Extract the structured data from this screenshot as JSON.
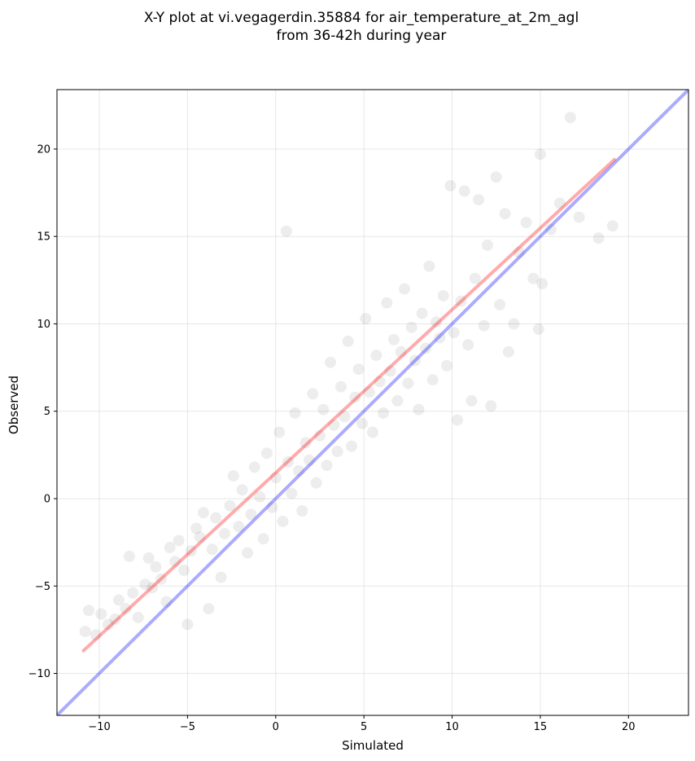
{
  "chart_data": {
    "type": "scatter",
    "title": "X-Y plot at vi.vegagerdin.35884 for air_temperature_at_2m_agl",
    "subtitle": "from 36-42h during year",
    "xlabel": "Simulated",
    "ylabel": "Observed",
    "xlim": [
      -12.4,
      23.4
    ],
    "ylim": [
      -12.4,
      23.4
    ],
    "x_ticks": [
      -10,
      -5,
      0,
      5,
      10,
      15,
      20
    ],
    "y_ticks": [
      -10,
      -5,
      0,
      5,
      10,
      15,
      20
    ],
    "x_tick_labels": [
      "−10",
      "−5",
      "0",
      "5",
      "10",
      "15",
      "20"
    ],
    "y_tick_labels": [
      "−10",
      "−5",
      "0",
      "5",
      "10",
      "15",
      "20"
    ],
    "grid": true,
    "point_color": "#000000",
    "identity_line": {
      "color": "#0000ff",
      "from": [
        -12.4,
        -12.4
      ],
      "to": [
        23.4,
        23.4
      ]
    },
    "fit_line": {
      "color": "#ff0000",
      "from": [
        -10.9,
        -8.7
      ],
      "to": [
        19.2,
        19.4
      ]
    },
    "series": [
      {
        "points": [
          [
            -10.8,
            -7.6
          ],
          [
            -10.6,
            -6.4
          ],
          [
            -10.2,
            -7.8
          ],
          [
            -9.9,
            -6.6
          ],
          [
            -9.5,
            -7.2
          ],
          [
            -9.1,
            -6.9
          ],
          [
            -8.9,
            -5.8
          ],
          [
            -8.5,
            -6.3
          ],
          [
            -8.3,
            -3.3
          ],
          [
            -8.1,
            -5.4
          ],
          [
            -7.8,
            -6.8
          ],
          [
            -7.4,
            -4.9
          ],
          [
            -7.2,
            -3.4
          ],
          [
            -7.0,
            -5.1
          ],
          [
            -6.8,
            -3.9
          ],
          [
            -6.5,
            -4.6
          ],
          [
            -6.2,
            -5.9
          ],
          [
            -6.0,
            -2.8
          ],
          [
            -5.7,
            -3.6
          ],
          [
            -5.5,
            -2.4
          ],
          [
            -5.2,
            -4.1
          ],
          [
            -5.0,
            -7.2
          ],
          [
            -4.8,
            -3.0
          ],
          [
            -4.5,
            -1.7
          ],
          [
            -4.3,
            -2.2
          ],
          [
            -4.1,
            -0.8
          ],
          [
            -3.8,
            -6.3
          ],
          [
            -3.6,
            -2.9
          ],
          [
            -3.4,
            -1.1
          ],
          [
            -3.1,
            -4.5
          ],
          [
            -2.9,
            -2.0
          ],
          [
            -2.6,
            -0.4
          ],
          [
            -2.4,
            1.3
          ],
          [
            -2.1,
            -1.6
          ],
          [
            -1.9,
            0.5
          ],
          [
            -1.6,
            -3.1
          ],
          [
            -1.4,
            -0.9
          ],
          [
            -1.2,
            1.8
          ],
          [
            -0.9,
            0.1
          ],
          [
            -0.7,
            -2.3
          ],
          [
            -0.5,
            2.6
          ],
          [
            -0.2,
            -0.5
          ],
          [
            0.0,
            1.2
          ],
          [
            0.2,
            3.8
          ],
          [
            0.4,
            -1.3
          ],
          [
            0.6,
            15.3
          ],
          [
            0.7,
            2.1
          ],
          [
            0.9,
            0.3
          ],
          [
            1.1,
            4.9
          ],
          [
            1.3,
            1.6
          ],
          [
            1.5,
            -0.7
          ],
          [
            1.7,
            3.2
          ],
          [
            1.9,
            2.2
          ],
          [
            2.1,
            6.0
          ],
          [
            2.3,
            0.9
          ],
          [
            2.5,
            3.6
          ],
          [
            2.7,
            5.1
          ],
          [
            2.9,
            1.9
          ],
          [
            3.1,
            7.8
          ],
          [
            3.3,
            4.2
          ],
          [
            3.5,
            2.7
          ],
          [
            3.7,
            6.4
          ],
          [
            3.9,
            4.7
          ],
          [
            4.1,
            9.0
          ],
          [
            4.3,
            3.0
          ],
          [
            4.5,
            5.8
          ],
          [
            4.7,
            7.4
          ],
          [
            4.9,
            4.3
          ],
          [
            5.1,
            10.3
          ],
          [
            5.3,
            6.1
          ],
          [
            5.5,
            3.8
          ],
          [
            5.7,
            8.2
          ],
          [
            5.9,
            6.7
          ],
          [
            6.1,
            4.9
          ],
          [
            6.3,
            11.2
          ],
          [
            6.5,
            7.3
          ],
          [
            6.7,
            9.1
          ],
          [
            6.9,
            5.6
          ],
          [
            7.1,
            8.4
          ],
          [
            7.3,
            12.0
          ],
          [
            7.5,
            6.6
          ],
          [
            7.7,
            9.8
          ],
          [
            7.9,
            7.9
          ],
          [
            8.1,
            5.1
          ],
          [
            8.3,
            10.6
          ],
          [
            8.5,
            8.6
          ],
          [
            8.7,
            13.3
          ],
          [
            8.9,
            6.8
          ],
          [
            9.1,
            10.1
          ],
          [
            9.3,
            9.2
          ],
          [
            9.5,
            11.6
          ],
          [
            9.7,
            7.6
          ],
          [
            9.9,
            17.9
          ],
          [
            10.1,
            9.5
          ],
          [
            10.3,
            4.5
          ],
          [
            10.5,
            11.3
          ],
          [
            10.7,
            17.6
          ],
          [
            10.9,
            8.8
          ],
          [
            11.1,
            5.6
          ],
          [
            11.3,
            12.6
          ],
          [
            11.5,
            17.1
          ],
          [
            11.8,
            9.9
          ],
          [
            12.0,
            14.5
          ],
          [
            12.2,
            5.3
          ],
          [
            12.5,
            18.4
          ],
          [
            12.7,
            11.1
          ],
          [
            13.0,
            16.3
          ],
          [
            13.2,
            8.4
          ],
          [
            13.5,
            10.0
          ],
          [
            13.8,
            14.1
          ],
          [
            14.2,
            15.8
          ],
          [
            14.6,
            12.6
          ],
          [
            14.9,
            9.7
          ],
          [
            15.0,
            19.7
          ],
          [
            15.1,
            12.3
          ],
          [
            15.6,
            15.4
          ],
          [
            16.1,
            16.9
          ],
          [
            16.7,
            21.8
          ],
          [
            17.2,
            16.1
          ],
          [
            18.3,
            14.9
          ],
          [
            19.1,
            15.6
          ]
        ]
      }
    ]
  }
}
